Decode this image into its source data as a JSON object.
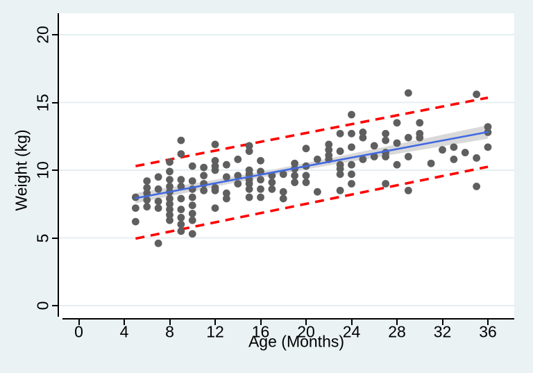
{
  "style": {
    "background_color": "#eaf2f3",
    "plot_background_color": "#ffffff",
    "gridline_color": "#e4eef0",
    "marker_color": "#5f5f5f",
    "fit_line_color": "#4169e1",
    "ci_band_color": "#d9d9d9",
    "limit_line_color": "#fe0000",
    "axis_color": "#000000"
  },
  "chart_data": {
    "type": "scatter",
    "title": "",
    "xlabel": "Age (Months)",
    "ylabel": "Weight (kg)",
    "x_ticks": [
      0,
      4,
      8,
      12,
      16,
      20,
      24,
      28,
      32,
      36
    ],
    "y_ticks": [
      0,
      5,
      10,
      15,
      20
    ],
    "xlim": [
      -1.7,
      38.3
    ],
    "ylim": [
      -1.0,
      21.6
    ],
    "grid": "horizontal",
    "legend_position": "none",
    "points": [
      [
        5,
        8.0
      ],
      [
        5,
        7.2
      ],
      [
        5,
        6.2
      ],
      [
        6,
        9.2
      ],
      [
        6,
        8.7
      ],
      [
        6,
        8.3
      ],
      [
        6,
        7.8
      ],
      [
        6,
        7.3
      ],
      [
        7,
        9.5
      ],
      [
        7,
        8.6
      ],
      [
        7,
        7.7
      ],
      [
        7,
        7.2
      ],
      [
        7,
        4.6
      ],
      [
        8,
        10.6
      ],
      [
        8,
        9.9
      ],
      [
        8,
        9.3
      ],
      [
        8,
        8.8
      ],
      [
        8,
        8.4
      ],
      [
        8,
        7.9
      ],
      [
        8,
        7.5
      ],
      [
        8,
        7.1
      ],
      [
        8,
        6.7
      ],
      [
        8,
        6.3
      ],
      [
        9,
        12.2
      ],
      [
        9,
        11.2
      ],
      [
        9,
        9.3
      ],
      [
        9,
        8.8
      ],
      [
        9,
        7.9
      ],
      [
        9,
        7.1
      ],
      [
        9,
        6.5
      ],
      [
        9,
        6.0
      ],
      [
        9,
        5.5
      ],
      [
        10,
        10.3
      ],
      [
        10,
        9.2
      ],
      [
        10,
        8.6
      ],
      [
        10,
        8.0
      ],
      [
        10,
        7.4
      ],
      [
        10,
        6.8
      ],
      [
        10,
        6.3
      ],
      [
        10,
        5.3
      ],
      [
        11,
        10.2
      ],
      [
        11,
        9.6
      ],
      [
        11,
        9.0
      ],
      [
        11,
        8.5
      ],
      [
        12,
        11.9
      ],
      [
        12,
        10.7
      ],
      [
        12,
        10.3
      ],
      [
        12,
        10.0
      ],
      [
        12,
        8.7
      ],
      [
        12,
        8.5
      ],
      [
        12,
        7.2
      ],
      [
        13,
        10.4
      ],
      [
        13,
        9.5
      ],
      [
        13,
        8.3
      ],
      [
        13,
        7.9
      ],
      [
        14,
        10.8
      ],
      [
        14,
        9.6
      ],
      [
        14,
        9.0
      ],
      [
        15,
        11.8
      ],
      [
        15,
        11.4
      ],
      [
        15,
        10.0
      ],
      [
        15,
        9.7
      ],
      [
        15,
        9.3
      ],
      [
        15,
        9.0
      ],
      [
        15,
        8.6
      ],
      [
        15,
        8.0
      ],
      [
        16,
        10.7
      ],
      [
        16,
        9.9
      ],
      [
        16,
        9.3
      ],
      [
        16,
        8.6
      ],
      [
        16,
        8.0
      ],
      [
        17,
        9.6
      ],
      [
        17,
        9.1
      ],
      [
        17,
        8.6
      ],
      [
        18,
        9.7
      ],
      [
        18,
        8.4
      ],
      [
        18,
        7.9
      ],
      [
        19,
        10.5
      ],
      [
        19,
        10.1
      ],
      [
        19,
        9.6
      ],
      [
        19,
        9.1
      ],
      [
        20,
        11.6
      ],
      [
        20,
        10.3
      ],
      [
        20,
        9.6
      ],
      [
        20,
        9.1
      ],
      [
        21,
        10.8
      ],
      [
        21,
        8.4
      ],
      [
        22,
        11.9
      ],
      [
        22,
        11.5
      ],
      [
        22,
        11.1
      ],
      [
        22,
        10.8
      ],
      [
        23,
        12.7
      ],
      [
        23,
        11.4
      ],
      [
        23,
        10.4
      ],
      [
        23,
        10.1
      ],
      [
        23,
        9.7
      ],
      [
        23,
        8.5
      ],
      [
        24,
        14.1
      ],
      [
        24,
        12.7
      ],
      [
        24,
        11.7
      ],
      [
        24,
        10.4
      ],
      [
        24,
        9.7
      ],
      [
        24,
        9.0
      ],
      [
        25,
        12.8
      ],
      [
        25,
        12.4
      ],
      [
        25,
        10.8
      ],
      [
        26,
        11.8
      ],
      [
        26,
        11.0
      ],
      [
        27,
        12.7
      ],
      [
        27,
        12.2
      ],
      [
        27,
        11.3
      ],
      [
        27,
        11.0
      ],
      [
        27,
        9.0
      ],
      [
        28,
        13.5
      ],
      [
        28,
        12.0
      ],
      [
        28,
        10.4
      ],
      [
        29,
        15.7
      ],
      [
        29,
        12.4
      ],
      [
        29,
        11.0
      ],
      [
        29,
        8.5
      ],
      [
        30,
        13.5
      ],
      [
        30,
        12.7
      ],
      [
        30,
        12.4
      ],
      [
        31,
        10.5
      ],
      [
        32,
        11.5
      ],
      [
        33,
        11.7
      ],
      [
        33,
        10.8
      ],
      [
        34,
        11.3
      ],
      [
        35,
        15.6
      ],
      [
        35,
        10.9
      ],
      [
        35,
        8.8
      ],
      [
        36,
        13.2
      ],
      [
        36,
        12.8
      ],
      [
        36,
        11.7
      ]
    ],
    "fit_line": {
      "x": [
        5,
        36
      ],
      "y": [
        7.93,
        12.82
      ]
    },
    "ci_band": {
      "keypoints": [
        [
          5,
          0.38
        ],
        [
          11,
          0.27
        ],
        [
          17,
          0.21
        ],
        [
          23,
          0.27
        ],
        [
          29,
          0.37
        ],
        [
          36,
          0.5
        ]
      ]
    },
    "upper_limit_line": {
      "x": [
        5,
        36
      ],
      "y": [
        10.3,
        15.35
      ]
    },
    "lower_limit_line": {
      "x": [
        5,
        36
      ],
      "y": [
        4.95,
        10.25
      ]
    }
  }
}
